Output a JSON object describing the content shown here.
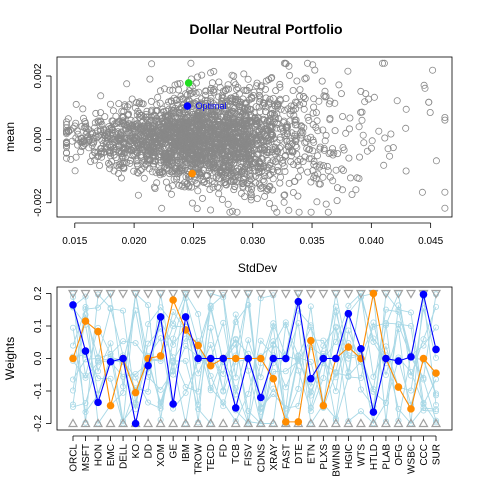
{
  "title": "Dollar Neutral Portfolio",
  "chart_data": [
    {
      "type": "scatter",
      "xlabel": "StdDev",
      "ylabel": "mean",
      "xlim": [
        0.0135,
        0.0468
      ],
      "ylim": [
        -0.00245,
        0.0026
      ],
      "x_ticks": [
        {
          "value": 0.015,
          "label": "0.015"
        },
        {
          "value": 0.02,
          "label": "0.020"
        },
        {
          "value": 0.025,
          "label": "0.025"
        },
        {
          "value": 0.03,
          "label": "0.030"
        },
        {
          "value": 0.035,
          "label": "0.035"
        },
        {
          "value": 0.04,
          "label": "0.040"
        },
        {
          "value": 0.045,
          "label": "0.045"
        }
      ],
      "y_ticks": [
        {
          "value": -0.002,
          "label": "-0.002"
        },
        {
          "value": 0.0,
          "label": "0.000"
        },
        {
          "value": 0.002,
          "label": "0.002"
        }
      ],
      "cloud": {
        "color": "#888888",
        "n": 2600,
        "seed": 7,
        "x_center": 0.0255,
        "x_spread": 0.0045,
        "y_spread": 0.00062
      },
      "highlight_points": [
        {
          "name": "Optimal",
          "x": 0.0245,
          "y": 0.00105,
          "color": "#0000ff",
          "label": "Optimal"
        },
        {
          "name": "max-mean",
          "x": 0.0246,
          "y": 0.00178,
          "color": "#22dd22"
        },
        {
          "name": "orange",
          "x": 0.0249,
          "y": -0.00108,
          "color": "#ff8c00"
        }
      ],
      "grid": false
    },
    {
      "type": "line",
      "ylabel": "Weights",
      "ylim": [
        -0.22,
        0.22
      ],
      "y_ticks": [
        {
          "value": -0.2,
          "label": "-0.2"
        },
        {
          "value": -0.1,
          "label": "-0.1"
        },
        {
          "value": 0.0,
          "label": "0.0"
        },
        {
          "value": 0.1,
          "label": "0.1"
        },
        {
          "value": 0.2,
          "label": "0.2"
        }
      ],
      "categories": [
        "ORCL",
        "MSFT",
        "HON",
        "EMC",
        "DELL",
        "KO",
        "DD",
        "XOM",
        "GE",
        "IBM",
        "TROW",
        "TECD",
        "FD",
        "TCB",
        "FISV",
        "CDNS",
        "XRAY",
        "FAST",
        "DTE",
        "ETN",
        "PLXS",
        "BWINB",
        "HGIC",
        "WTS",
        "HTLD",
        "PLAB",
        "OFG",
        "WSBC",
        "CCC",
        "SUR"
      ],
      "bounds": {
        "upper": 0.2,
        "lower": -0.2,
        "color": "#a0a0a0"
      },
      "series": [
        {
          "name": "Optimal",
          "color": "#0000ff",
          "values": [
            0.165,
            0.023,
            -0.135,
            -0.01,
            0.0,
            -0.2,
            -0.022,
            0.128,
            -0.14,
            0.128,
            0.0,
            0.0,
            0.0,
            -0.152,
            0.0,
            -0.12,
            0.0,
            0.0,
            0.175,
            -0.062,
            0.0,
            0.0,
            0.138,
            0.03,
            -0.165,
            0.0,
            -0.008,
            0.005,
            0.197,
            0.028
          ]
        },
        {
          "name": "orange",
          "color": "#ff8c00",
          "values": [
            0.0,
            0.115,
            0.083,
            -0.145,
            0.0,
            -0.105,
            0.0,
            0.008,
            0.18,
            0.088,
            0.04,
            -0.022,
            0.0,
            0.0,
            0.0,
            0.0,
            -0.062,
            -0.195,
            -0.195,
            0.055,
            -0.145,
            0.0,
            0.035,
            0.0,
            0.2,
            0.0,
            -0.088,
            -0.155,
            0.0,
            -0.045
          ]
        }
      ],
      "background_lines": {
        "color": "#a8d8e6",
        "count": 12,
        "seed": 3
      },
      "grid": false
    }
  ]
}
